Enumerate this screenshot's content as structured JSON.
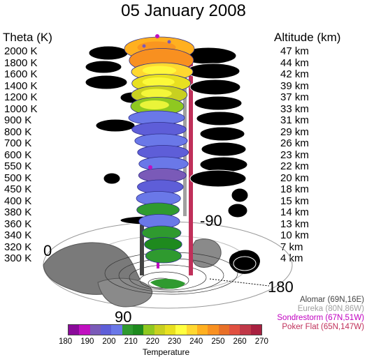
{
  "title": "05 January 2008",
  "theta_header": "Theta (K)",
  "altitude_header": "Altitude (km)",
  "levels": [
    {
      "theta": "2000 K",
      "altitude": "47 km"
    },
    {
      "theta": "1800 K",
      "altitude": "44 km"
    },
    {
      "theta": "1600 K",
      "altitude": "42 km"
    },
    {
      "theta": "1400 K",
      "altitude": "39 km"
    },
    {
      "theta": "1200 K",
      "altitude": "37 km"
    },
    {
      "theta": "1000 K",
      "altitude": "33 km"
    },
    {
      "theta": "900 K",
      "altitude": "31 km"
    },
    {
      "theta": "800 K",
      "altitude": "29 km"
    },
    {
      "theta": "700 K",
      "altitude": "26 km"
    },
    {
      "theta": "600 K",
      "altitude": "23 km"
    },
    {
      "theta": "550 K",
      "altitude": "22 km"
    },
    {
      "theta": "500 K",
      "altitude": "20 km"
    },
    {
      "theta": "450 K",
      "altitude": "18 km"
    },
    {
      "theta": "400 K",
      "altitude": "15 km"
    },
    {
      "theta": "380 K",
      "altitude": "14 km"
    },
    {
      "theta": "360 K",
      "altitude": "13 km"
    },
    {
      "theta": "340 K",
      "altitude": "10 km"
    },
    {
      "theta": "320 K",
      "altitude": "7 km"
    },
    {
      "theta": "300 K",
      "altitude": "4 km"
    }
  ],
  "longitude_labels": {
    "lon_0": "0",
    "lon_90w": "-90",
    "lon_90": "90",
    "lon_180": "180"
  },
  "stations": [
    {
      "name": "Alomar (69N,16E)",
      "color": "#444444"
    },
    {
      "name": "Eureka (80N,86W)",
      "color": "#a0a0a0"
    },
    {
      "name": "Sondrestorm (67N,51W)",
      "color": "#c000c0"
    },
    {
      "name": "Poker Flat (65N,147W)",
      "color": "#c0305a"
    }
  ],
  "colorbar": {
    "label": "Temperature",
    "ticks": [
      "180",
      "190",
      "200",
      "210",
      "220",
      "230",
      "240",
      "250",
      "260",
      "270"
    ],
    "colors": [
      "#8a0a9a",
      "#c010c0",
      "#7a5ab8",
      "#5e5ed8",
      "#6a78e8",
      "#2f9a2f",
      "#1e8a1e",
      "#8fc820",
      "#c8d020",
      "#e8e020",
      "#ffff40",
      "#ffd830",
      "#ffb020",
      "#f89020",
      "#e87028",
      "#e05040",
      "#c03848",
      "#a82040"
    ]
  }
}
